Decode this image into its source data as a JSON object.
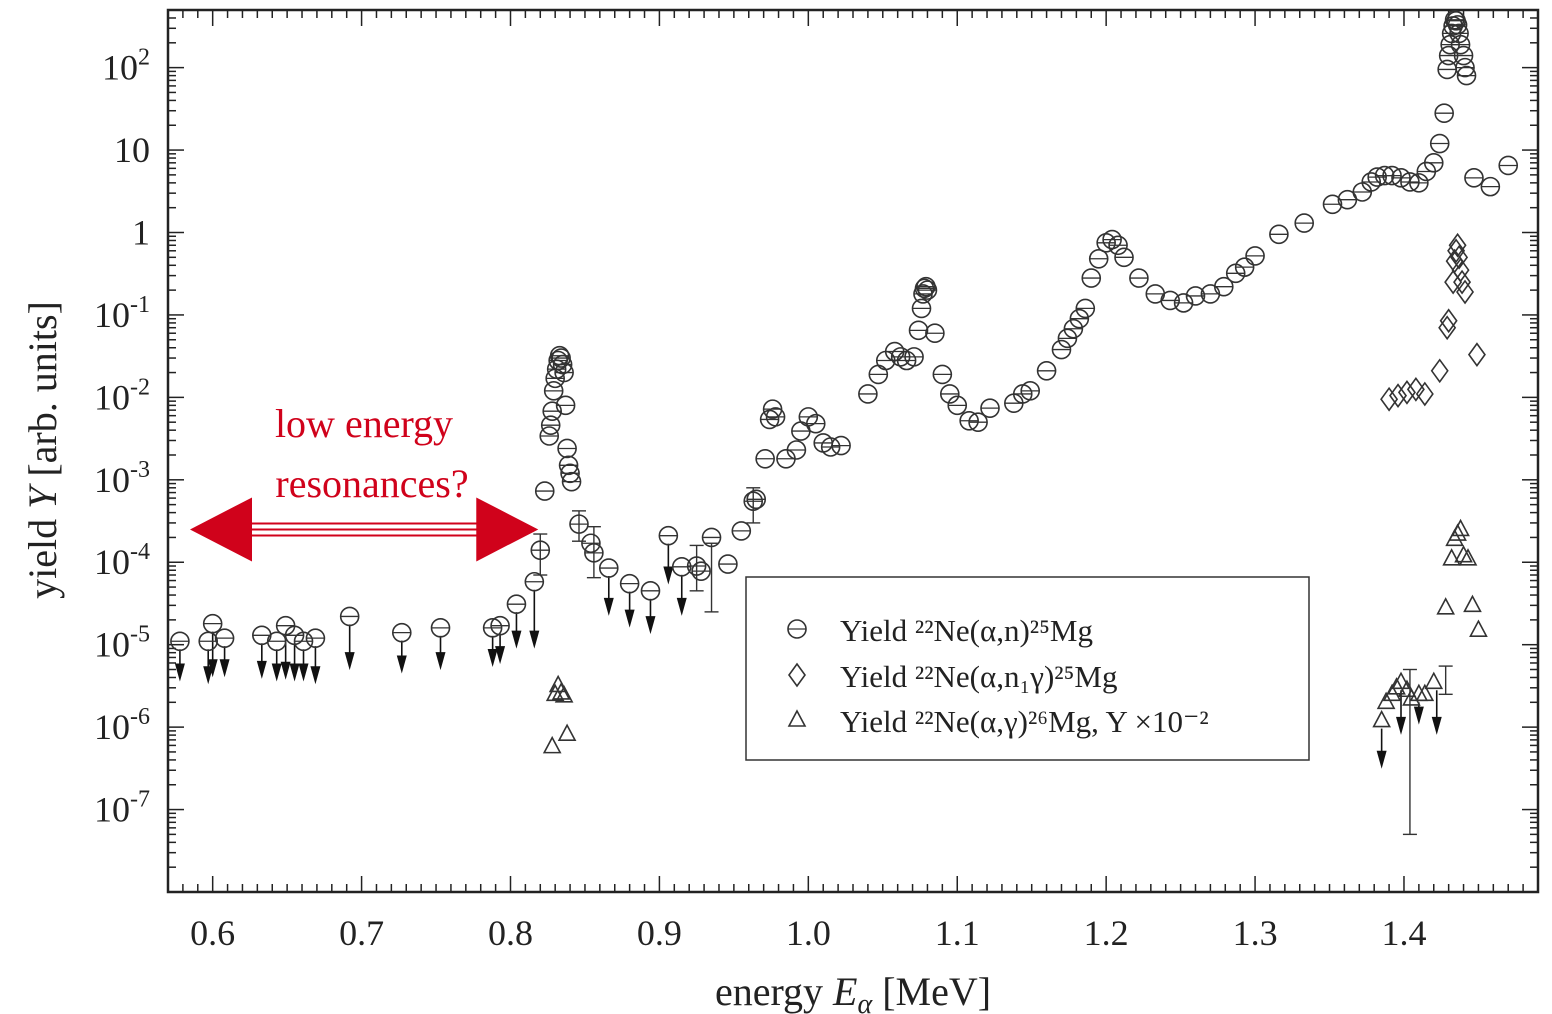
{
  "chart_data": {
    "type": "scatter",
    "xlabel": {
      "prefix": "energy ",
      "var": "E",
      "sub": "α",
      "suffix": " [MeV]"
    },
    "ylabel": {
      "prefix": "yield ",
      "var": "Y",
      "suffix": " [arb. units]"
    },
    "xlim": [
      0.57,
      1.49
    ],
    "ylim": [
      1e-08,
      500
    ],
    "yscale": "log",
    "grid": false,
    "legend_position": "lower-center",
    "x_ticks": [
      "0.6",
      "0.7",
      "0.8",
      "0.9",
      "1.0",
      "1.1",
      "1.2",
      "1.3",
      "1.4"
    ],
    "y_ticks": [
      {
        "value": 100,
        "base": "10",
        "exp": "2"
      },
      {
        "value": 10,
        "base": "10",
        "exp": ""
      },
      {
        "value": 1,
        "base": "1",
        "exp": ""
      },
      {
        "value": 0.1,
        "base": "10",
        "exp": "-1"
      },
      {
        "value": 0.01,
        "base": "10",
        "exp": "-2"
      },
      {
        "value": 0.001,
        "base": "10",
        "exp": "-3"
      },
      {
        "value": 0.0001,
        "base": "10",
        "exp": "-4"
      },
      {
        "value": 1e-05,
        "base": "10",
        "exp": "-5"
      },
      {
        "value": 1e-06,
        "base": "10",
        "exp": "-6"
      },
      {
        "value": 1e-07,
        "base": "10",
        "exp": "-7"
      }
    ],
    "annotation": {
      "lines": [
        "low energy",
        "resonances?"
      ],
      "color": "#d0021b",
      "arrow_x_range": [
        0.57,
        0.82
      ],
      "arrow_y": 0.00025
    },
    "legend": [
      {
        "marker": "circle",
        "label": "Yield ²²Ne(α,n)²⁵Mg"
      },
      {
        "marker": "diamond",
        "label": "Yield ²²Ne(α,n₁γ)²⁵Mg"
      },
      {
        "marker": "triangle",
        "label": "Yield ²²Ne(α,γ)²⁶Mg, Y ×10⁻²"
      }
    ],
    "series": [
      {
        "marker": "circle",
        "points": [
          [
            0.578,
            1.1e-05
          ],
          [
            0.597,
            1.1e-05
          ],
          [
            0.6,
            1.8e-05
          ],
          [
            0.608,
            1.2e-05
          ],
          [
            0.633,
            1.3e-05
          ],
          [
            0.643,
            1.1e-05
          ],
          [
            0.649,
            1.7e-05
          ],
          [
            0.655,
            1.3e-05
          ],
          [
            0.661,
            1.1e-05
          ],
          [
            0.669,
            1.2e-05
          ],
          [
            0.692,
            2.2e-05
          ],
          [
            0.727,
            1.4e-05
          ],
          [
            0.753,
            1.6e-05
          ],
          [
            0.788,
            1.6e-05
          ],
          [
            0.793,
            1.7e-05
          ],
          [
            0.804,
            3.1e-05
          ],
          [
            0.816,
            5.8e-05
          ],
          [
            0.82,
            0.00014
          ],
          [
            0.823,
            0.00073
          ],
          [
            0.826,
            0.0034
          ],
          [
            0.827,
            0.0046
          ],
          [
            0.828,
            0.0068
          ],
          [
            0.829,
            0.012
          ],
          [
            0.83,
            0.017
          ],
          [
            0.831,
            0.022
          ],
          [
            0.832,
            0.028
          ],
          [
            0.833,
            0.032
          ],
          [
            0.834,
            0.03
          ],
          [
            0.835,
            0.025
          ],
          [
            0.836,
            0.02
          ],
          [
            0.837,
            0.008
          ],
          [
            0.838,
            0.0024
          ],
          [
            0.839,
            0.0015
          ],
          [
            0.84,
            0.0012
          ],
          [
            0.841,
            0.00095
          ],
          [
            0.846,
            0.00029
          ],
          [
            0.854,
            0.00017
          ],
          [
            0.856,
            0.00013
          ],
          [
            0.866,
            8.5e-05
          ],
          [
            0.88,
            5.5e-05
          ],
          [
            0.894,
            4.5e-05
          ],
          [
            0.906,
            0.00021
          ],
          [
            0.915,
            8.8e-05
          ],
          [
            0.925,
            9e-05
          ],
          [
            0.928,
            7.8e-05
          ],
          [
            0.935,
            0.0002
          ],
          [
            0.946,
            9.5e-05
          ],
          [
            0.955,
            0.00024
          ],
          [
            0.963,
            0.00055
          ],
          [
            0.965,
            0.00058
          ],
          [
            0.971,
            0.0018
          ],
          [
            0.974,
            0.0054
          ],
          [
            0.976,
            0.0072
          ],
          [
            0.978,
            0.0058
          ],
          [
            0.985,
            0.0018
          ],
          [
            0.992,
            0.0023
          ],
          [
            0.995,
            0.0039
          ],
          [
            1.0,
            0.0058
          ],
          [
            1.005,
            0.0048
          ],
          [
            1.01,
            0.0028
          ],
          [
            1.015,
            0.0025
          ],
          [
            1.022,
            0.0026
          ],
          [
            1.04,
            0.011
          ],
          [
            1.047,
            0.019
          ],
          [
            1.052,
            0.028
          ],
          [
            1.058,
            0.036
          ],
          [
            1.062,
            0.031
          ],
          [
            1.066,
            0.028
          ],
          [
            1.071,
            0.031
          ],
          [
            1.074,
            0.065
          ],
          [
            1.076,
            0.12
          ],
          [
            1.077,
            0.18
          ],
          [
            1.078,
            0.21
          ],
          [
            1.079,
            0.22
          ],
          [
            1.08,
            0.2
          ],
          [
            1.085,
            0.06
          ],
          [
            1.09,
            0.019
          ],
          [
            1.095,
            0.011
          ],
          [
            1.1,
            0.008
          ],
          [
            1.108,
            0.0052
          ],
          [
            1.114,
            0.005
          ],
          [
            1.122,
            0.0074
          ],
          [
            1.138,
            0.0085
          ],
          [
            1.144,
            0.011
          ],
          [
            1.149,
            0.012
          ],
          [
            1.16,
            0.021
          ],
          [
            1.17,
            0.038
          ],
          [
            1.174,
            0.052
          ],
          [
            1.178,
            0.068
          ],
          [
            1.182,
            0.09
          ],
          [
            1.186,
            0.12
          ],
          [
            1.19,
            0.28
          ],
          [
            1.195,
            0.48
          ],
          [
            1.2,
            0.75
          ],
          [
            1.204,
            0.82
          ],
          [
            1.208,
            0.7
          ],
          [
            1.212,
            0.5
          ],
          [
            1.222,
            0.28
          ],
          [
            1.233,
            0.18
          ],
          [
            1.243,
            0.15
          ],
          [
            1.252,
            0.14
          ],
          [
            1.26,
            0.17
          ],
          [
            1.27,
            0.18
          ],
          [
            1.279,
            0.22
          ],
          [
            1.287,
            0.32
          ],
          [
            1.293,
            0.38
          ],
          [
            1.3,
            0.52
          ],
          [
            1.316,
            0.95
          ],
          [
            1.333,
            1.3
          ],
          [
            1.352,
            2.2
          ],
          [
            1.362,
            2.5
          ],
          [
            1.372,
            3.1
          ],
          [
            1.378,
            4.1
          ],
          [
            1.382,
            4.7
          ],
          [
            1.387,
            4.9
          ],
          [
            1.392,
            4.9
          ],
          [
            1.398,
            4.6
          ],
          [
            1.404,
            4.1
          ],
          [
            1.41,
            4.0
          ],
          [
            1.415,
            5.5
          ],
          [
            1.42,
            7.0
          ],
          [
            1.424,
            12
          ],
          [
            1.427,
            28
          ],
          [
            1.429,
            95
          ],
          [
            1.43,
            140
          ],
          [
            1.431,
            190
          ],
          [
            1.432,
            260
          ],
          [
            1.433,
            320
          ],
          [
            1.434,
            380
          ],
          [
            1.435,
            370
          ],
          [
            1.436,
            330
          ],
          [
            1.437,
            260
          ],
          [
            1.438,
            190
          ],
          [
            1.44,
            140
          ],
          [
            1.441,
            100
          ],
          [
            1.442,
            80
          ],
          [
            1.447,
            4.6
          ],
          [
            1.458,
            3.6
          ],
          [
            1.47,
            6.5
          ]
        ]
      },
      {
        "marker": "diamond",
        "points": [
          [
            1.39,
            0.0095
          ],
          [
            1.396,
            0.0105
          ],
          [
            1.402,
            0.0115
          ],
          [
            1.408,
            0.0125
          ],
          [
            1.414,
            0.011
          ],
          [
            1.424,
            0.021
          ],
          [
            1.429,
            0.07
          ],
          [
            1.43,
            0.085
          ],
          [
            1.433,
            0.25
          ],
          [
            1.434,
            0.45
          ],
          [
            1.435,
            0.6
          ],
          [
            1.436,
            0.7
          ],
          [
            1.437,
            0.5
          ],
          [
            1.438,
            0.35
          ],
          [
            1.439,
            0.25
          ],
          [
            1.441,
            0.19
          ],
          [
            1.449,
            0.033
          ]
        ]
      },
      {
        "marker": "triangle",
        "points": [
          [
            0.828,
            5.8e-07
          ],
          [
            0.83,
            2.5e-06
          ],
          [
            0.832,
            3.2e-06
          ],
          [
            0.834,
            2.6e-06
          ],
          [
            0.836,
            2.4e-06
          ],
          [
            0.838,
            8.2e-07
          ],
          [
            1.385,
            1.2e-06
          ],
          [
            1.388,
            2e-06
          ],
          [
            1.392,
            2.5e-06
          ],
          [
            1.395,
            3e-06
          ],
          [
            1.398,
            3.5e-06
          ],
          [
            1.402,
            2.8e-06
          ],
          [
            1.405,
            2.2e-06
          ],
          [
            1.41,
            2.5e-06
          ],
          [
            1.414,
            2.5e-06
          ],
          [
            1.42,
            3.5e-06
          ],
          [
            1.428,
            2.8e-05
          ],
          [
            1.432,
            0.00011
          ],
          [
            1.434,
            0.00019
          ],
          [
            1.436,
            0.00022
          ],
          [
            1.438,
            0.00025
          ],
          [
            1.44,
            0.00012
          ],
          [
            1.443,
            0.00011
          ],
          [
            1.446,
            3e-05
          ],
          [
            1.45,
            1.5e-05
          ]
        ]
      }
    ],
    "upper_limits": [
      [
        0.578,
        4e-06
      ],
      [
        0.597,
        3.7e-06
      ],
      [
        0.6,
        4.5e-06
      ],
      [
        0.608,
        4.5e-06
      ],
      [
        0.633,
        4.3e-06
      ],
      [
        0.643,
        4e-06
      ],
      [
        0.649,
        4.2e-06
      ],
      [
        0.655,
        4e-06
      ],
      [
        0.661,
        4e-06
      ],
      [
        0.669,
        3.7e-06
      ],
      [
        0.692,
        5.5e-06
      ],
      [
        0.727,
        5e-06
      ],
      [
        0.753,
        5.5e-06
      ],
      [
        0.788,
        6e-06
      ],
      [
        0.793,
        6.5e-06
      ],
      [
        0.804,
        1e-05
      ],
      [
        0.816,
        1e-05
      ],
      [
        0.866,
        2.5e-05
      ],
      [
        0.88,
        1.8e-05
      ],
      [
        0.894,
        1.5e-05
      ],
      [
        0.906,
        6e-05
      ],
      [
        0.915,
        2.5e-05
      ],
      [
        1.385,
        3.5e-07
      ],
      [
        1.398,
        9e-07
      ],
      [
        1.41,
        1.2e-06
      ],
      [
        1.422,
        9e-07
      ]
    ],
    "error_bars": [
      [
        0.82,
        7e-05,
        0.00022
      ],
      [
        0.846,
        0.00018,
        0.00042
      ],
      [
        0.856,
        6.5e-05,
        0.00027
      ],
      [
        0.925,
        4.5e-05,
        0.00016
      ],
      [
        0.935,
        2.5e-05,
        0.00017
      ],
      [
        0.963,
        0.0003,
        0.0008
      ],
      [
        1.404,
        5e-08,
        5e-06
      ],
      [
        1.428,
        2.5e-06,
        5.5e-06
      ]
    ]
  }
}
